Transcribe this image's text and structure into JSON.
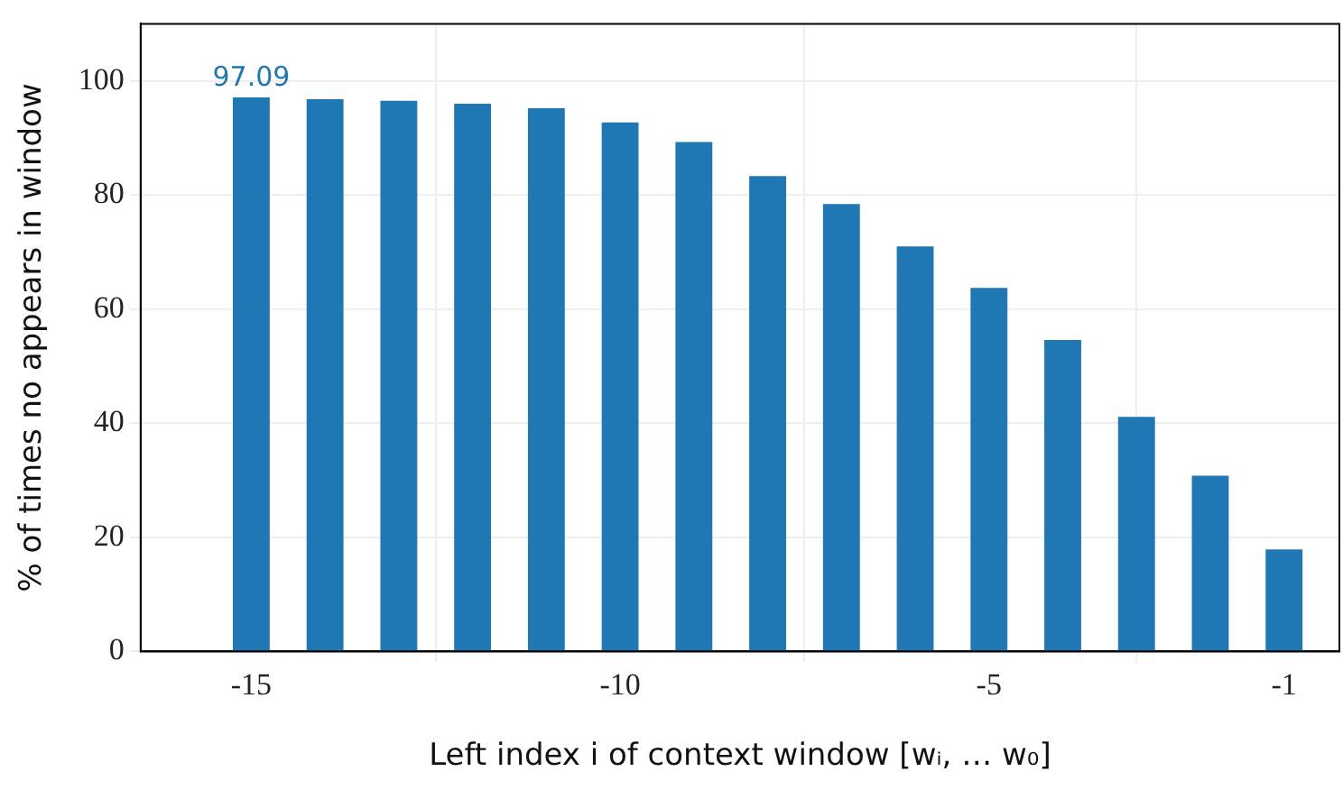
{
  "chart_data": {
    "type": "bar",
    "xlabel": "Left index i of context window [wᵢ, … w₀]",
    "ylabel": "% of times no appears in window",
    "x": [
      -15,
      -14,
      -13,
      -12,
      -11,
      -10,
      -9,
      -8,
      -7,
      -6,
      -5,
      -4,
      -3,
      -2,
      -1
    ],
    "values": [
      97.09,
      96.8,
      96.5,
      96.0,
      95.2,
      92.7,
      89.3,
      83.3,
      78.4,
      71.0,
      63.7,
      54.6,
      41.1,
      30.8,
      17.9
    ],
    "value_labels": [
      "97.09",
      null,
      null,
      null,
      null,
      null,
      null,
      null,
      null,
      null,
      null,
      null,
      null,
      null,
      null
    ],
    "color": "#1f77b4",
    "xlim": [
      -16.5,
      -0.25
    ],
    "xticks": [
      -15,
      -10,
      -5,
      -1
    ],
    "ylim": [
      0,
      110
    ],
    "yticks": [
      0,
      20,
      40,
      60,
      80,
      100
    ],
    "grid": true,
    "legend": false
  }
}
